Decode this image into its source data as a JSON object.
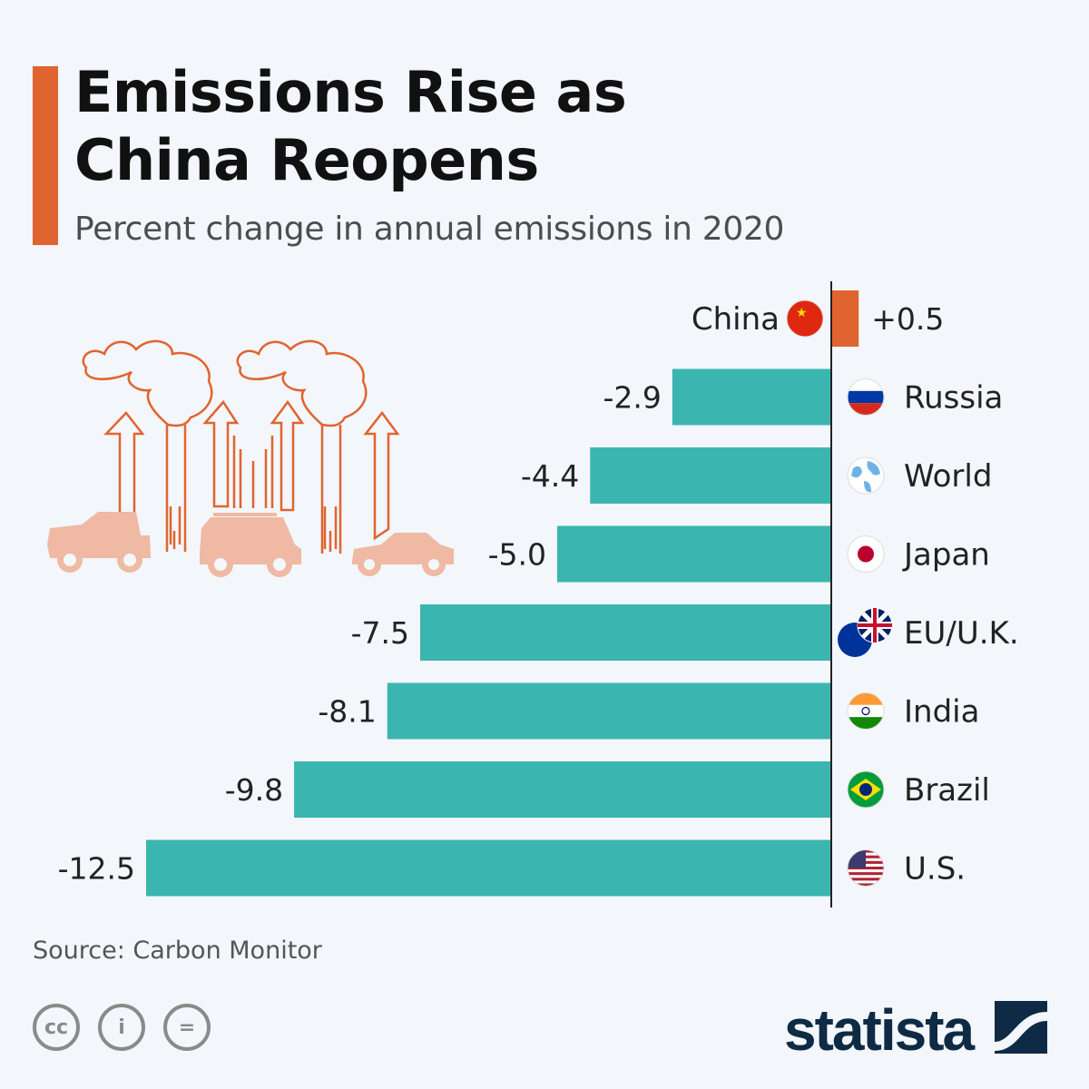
{
  "header": {
    "title_line1": "Emissions Rise as",
    "title_line2": "China Reopens",
    "subtitle": "Percent change in annual emissions in 2020"
  },
  "footer": {
    "source": "Source: Carbon Monitor",
    "logo": "statista",
    "license_icons": [
      "cc-icon",
      "attribution-icon",
      "no-derivatives-icon"
    ]
  },
  "colors": {
    "negative": "#3bb5b0",
    "positive": "#e06430",
    "accent": "#e06430",
    "illustration": "#e06430",
    "cars": "#efb9a3"
  },
  "chart_data": {
    "type": "bar",
    "orientation": "horizontal",
    "unit": "percent",
    "categories": [
      "China",
      "Russia",
      "World",
      "Japan",
      "EU/U.K.",
      "India",
      "Brazil",
      "U.S."
    ],
    "values": [
      0.5,
      -2.9,
      -4.4,
      -5.0,
      -7.5,
      -8.1,
      -9.8,
      -12.5
    ],
    "labels": [
      "+0.5",
      "-2.9",
      "-4.4",
      "-5.0",
      "-7.5",
      "-8.1",
      "-9.8",
      "-12.5"
    ],
    "flags": [
      "china-flag-icon",
      "russia-flag-icon",
      "globe-icon",
      "japan-flag-icon",
      "eu-uk-flag-icon",
      "india-flag-icon",
      "brazil-flag-icon",
      "us-flag-icon"
    ],
    "xlim": [
      -12.5,
      0.5
    ],
    "grid": false,
    "legend": "none"
  }
}
